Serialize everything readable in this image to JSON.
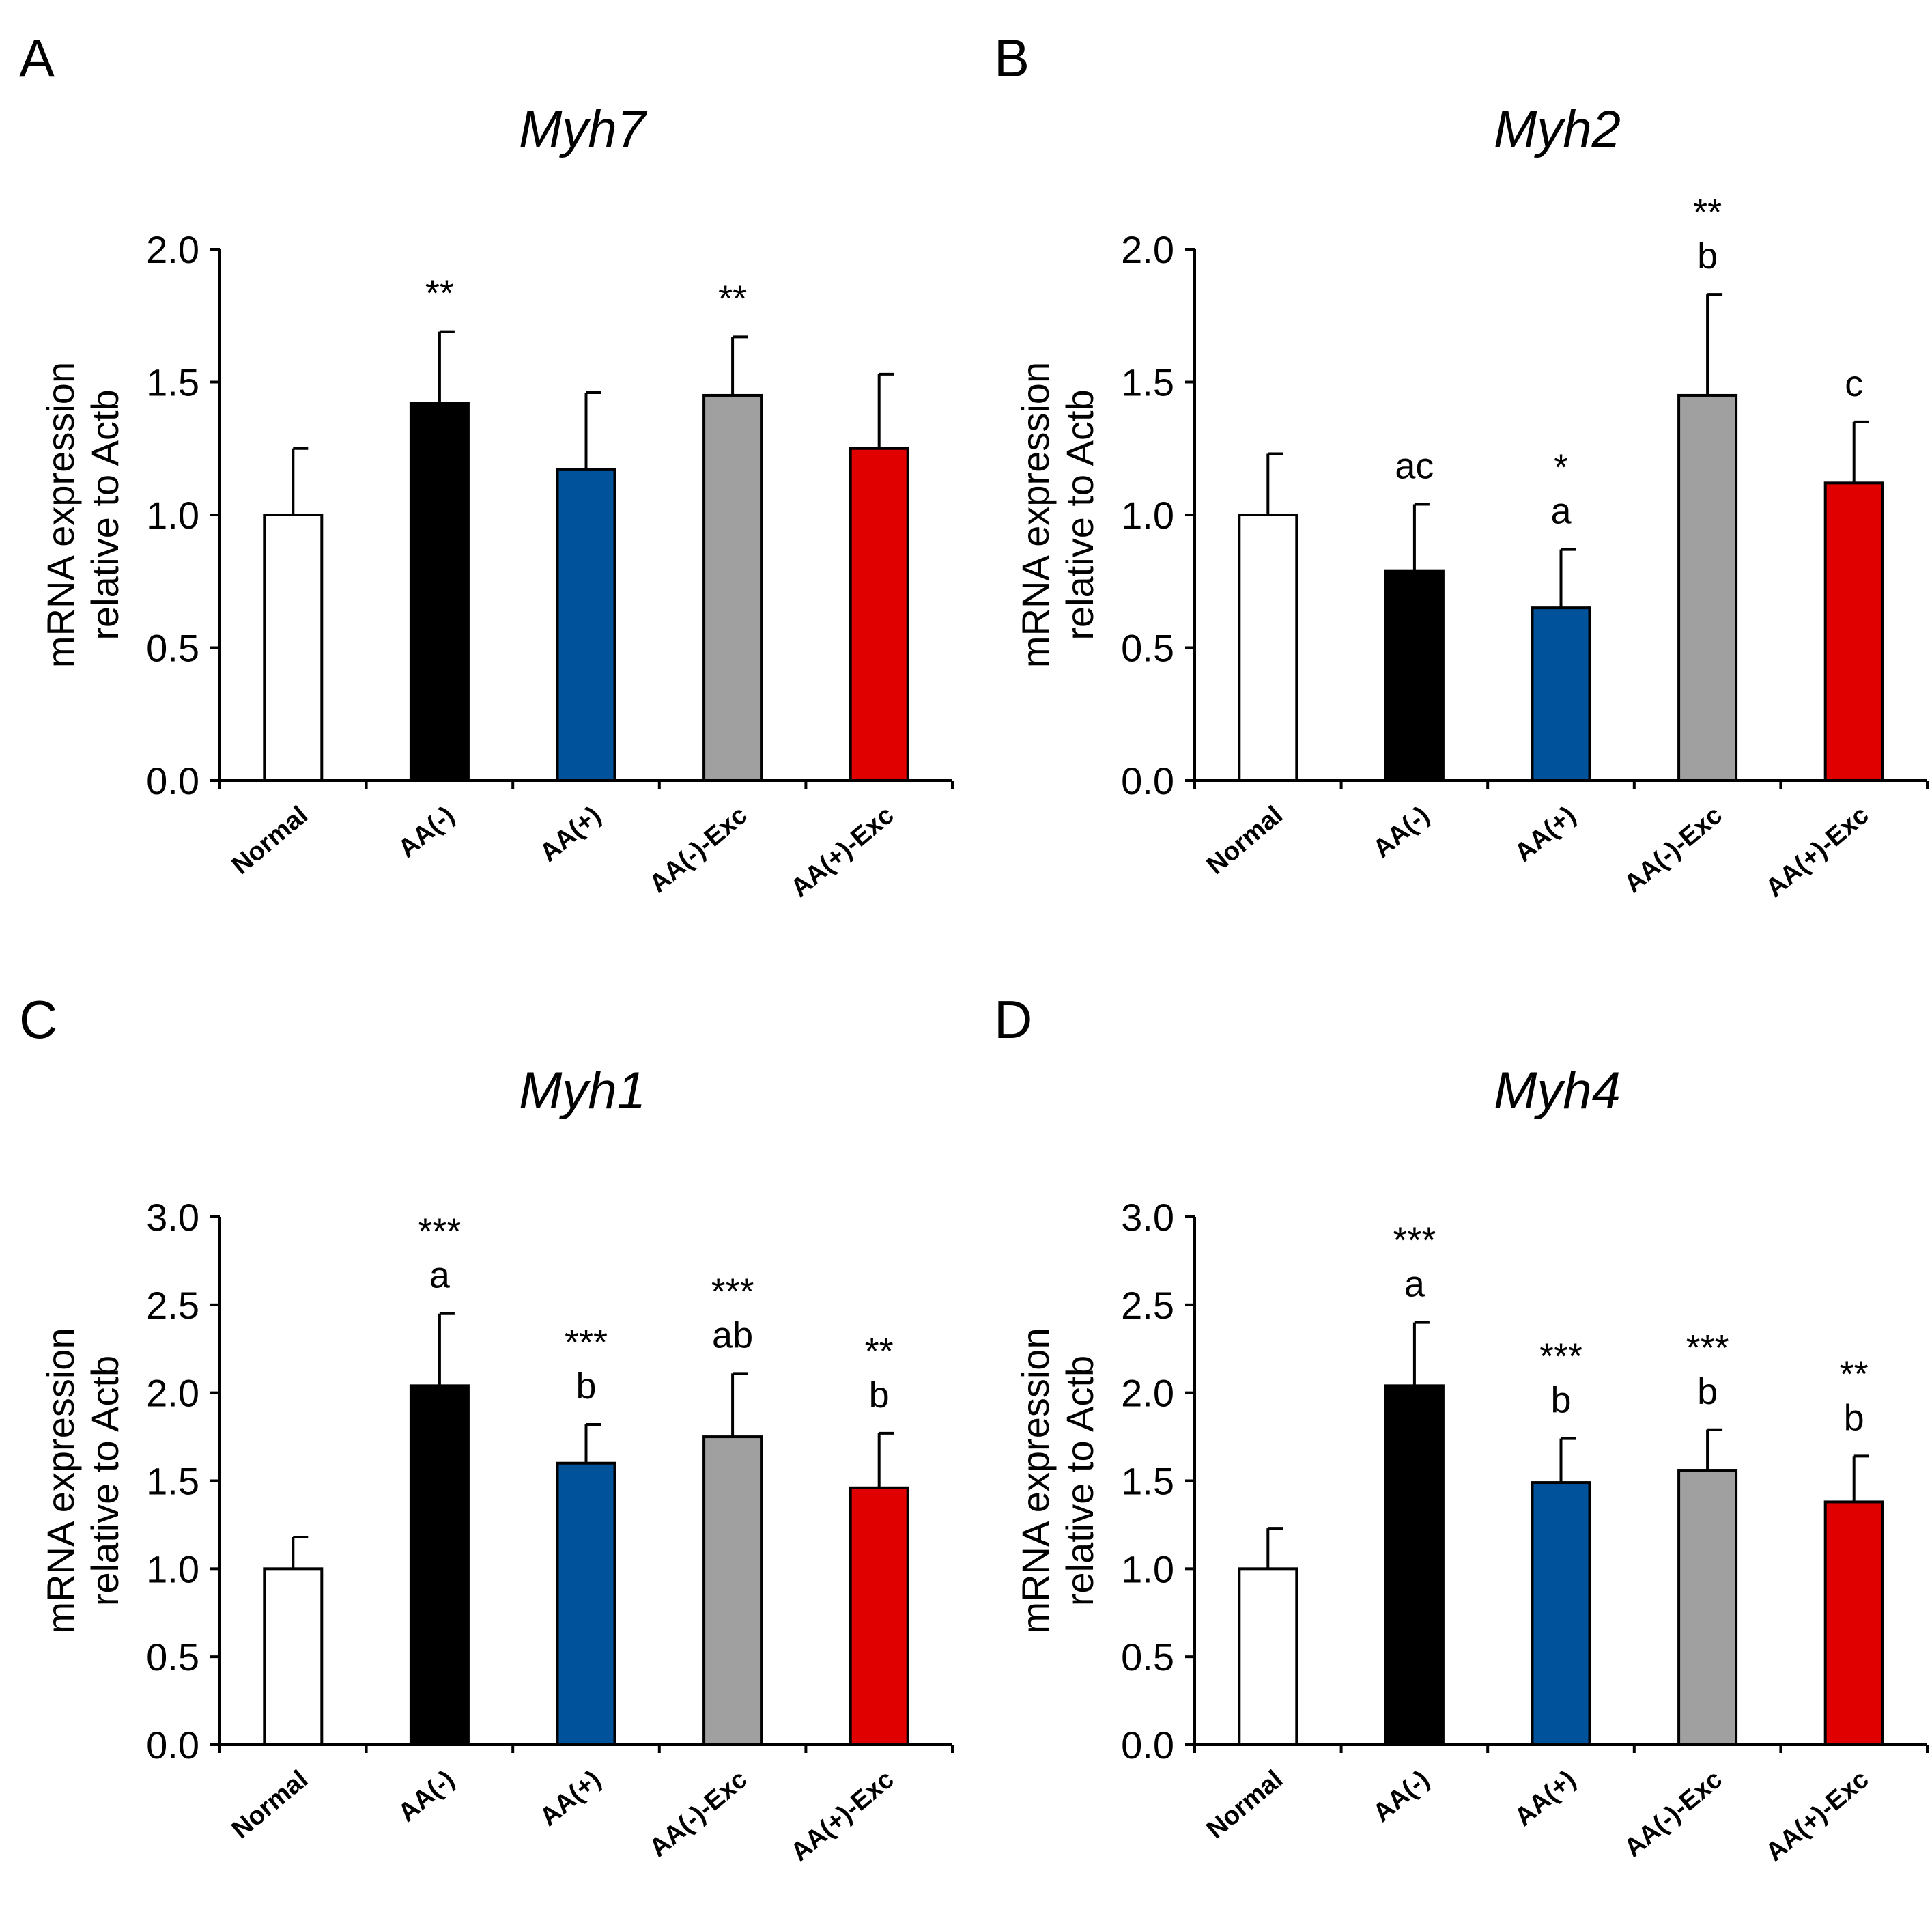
{
  "figure": {
    "panels": [
      "A",
      "B",
      "C",
      "D"
    ]
  },
  "chart_data": [
    {
      "panel": "A",
      "type": "bar",
      "title": "Myh7",
      "ylabel": [
        "mRNA expression",
        "relative  to Actb"
      ],
      "categories": [
        "Normal",
        "AA(-)",
        "AA(+)",
        "AA(-)-Exc",
        "AA(+)-Exc"
      ],
      "values": [
        1.0,
        1.42,
        1.17,
        1.45,
        1.25
      ],
      "errors": [
        0.25,
        0.27,
        0.29,
        0.22,
        0.28
      ],
      "colors": [
        "#ffffff",
        "#000000",
        "#00529b",
        "#a0a0a0",
        "#e00000"
      ],
      "ylim": [
        0,
        2.0
      ],
      "yticks": [
        "0.0",
        "0.5",
        "1.0",
        "1.5",
        "2.0"
      ],
      "annotations": [
        [],
        [
          "**"
        ],
        [],
        [
          "**"
        ],
        []
      ]
    },
    {
      "panel": "B",
      "type": "bar",
      "title": "Myh2",
      "ylabel": [
        "mRNA expression",
        "relative  to Actb"
      ],
      "categories": [
        "Normal",
        "AA(-)",
        "AA(+)",
        "AA(-)-Exc",
        "AA(+)-Exc"
      ],
      "values": [
        1.0,
        0.79,
        0.65,
        1.45,
        1.12
      ],
      "errors": [
        0.23,
        0.25,
        0.22,
        0.38,
        0.23
      ],
      "colors": [
        "#ffffff",
        "#000000",
        "#00529b",
        "#a0a0a0",
        "#e00000"
      ],
      "ylim": [
        0,
        2.0
      ],
      "yticks": [
        "0.0",
        "0.5",
        "1.0",
        "1.5",
        "2.0"
      ],
      "annotations": [
        [],
        [
          "ac"
        ],
        [
          "*",
          "a"
        ],
        [
          "**",
          "b"
        ],
        [
          "c"
        ]
      ]
    },
    {
      "panel": "C",
      "type": "bar",
      "title": "Myh1",
      "ylabel": [
        "mRNA expression",
        "relative  to Actb"
      ],
      "categories": [
        "Normal",
        "AA(-)",
        "AA(+)",
        "AA(-)-Exc",
        "AA(+)-Exc"
      ],
      "values": [
        1.0,
        2.04,
        1.6,
        1.75,
        1.46
      ],
      "errors": [
        0.18,
        0.41,
        0.22,
        0.36,
        0.31
      ],
      "colors": [
        "#ffffff",
        "#000000",
        "#00529b",
        "#a0a0a0",
        "#e00000"
      ],
      "ylim": [
        0,
        3.0
      ],
      "yticks": [
        "0.0",
        "0.5",
        "1.0",
        "1.5",
        "2.0",
        "2.5",
        "3.0"
      ],
      "annotations": [
        [],
        [
          "***",
          "a"
        ],
        [
          "***",
          "b"
        ],
        [
          "***",
          "ab"
        ],
        [
          "**",
          "b"
        ]
      ]
    },
    {
      "panel": "D",
      "type": "bar",
      "title": "Myh4",
      "ylabel": [
        "mRNA expression",
        "relative  to Actb"
      ],
      "categories": [
        "Normal",
        "AA(-)",
        "AA(+)",
        "AA(-)-Exc",
        "AA(+)-Exc"
      ],
      "values": [
        1.0,
        2.04,
        1.49,
        1.56,
        1.38
      ],
      "errors": [
        0.23,
        0.36,
        0.25,
        0.23,
        0.26
      ],
      "colors": [
        "#ffffff",
        "#000000",
        "#00529b",
        "#a0a0a0",
        "#e00000"
      ],
      "ylim": [
        0,
        3.0
      ],
      "yticks": [
        "0.0",
        "0.5",
        "1.0",
        "1.5",
        "2.0",
        "2.5",
        "3.0"
      ],
      "annotations": [
        [],
        [
          "***",
          "a"
        ],
        [
          "***",
          "b"
        ],
        [
          "***",
          "b"
        ],
        [
          "**",
          "b"
        ]
      ]
    }
  ]
}
